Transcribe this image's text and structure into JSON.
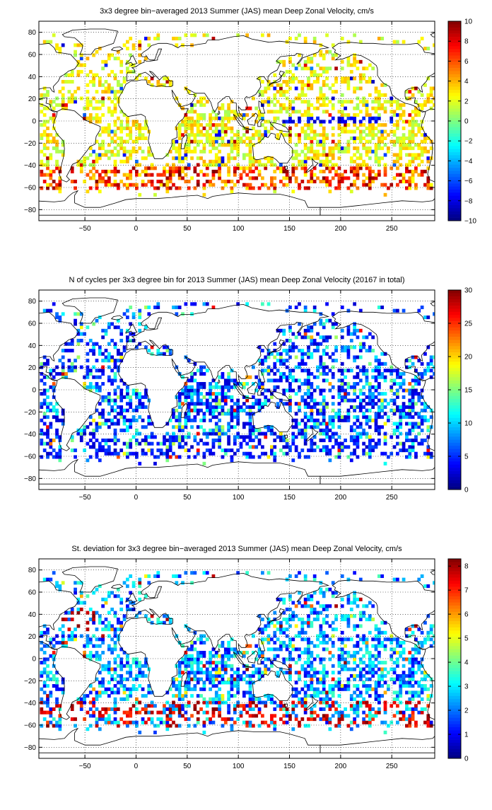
{
  "charts": [
    {
      "title": "3x3 degree bin−averaged 2013 Summer (JAS) mean Deep Zonal Velocity, cm/s",
      "colorbar_ticks": [
        "10",
        "8",
        "6",
        "4",
        "2",
        "0",
        "−2",
        "−4",
        "−6",
        "−8",
        "−10"
      ]
    },
    {
      "title": "N of cycles per 3x3 degree bin for 2013 Summer (JAS) mean Deep Zonal Velocity (20167 in total)",
      "colorbar_ticks": [
        "30",
        "25",
        "20",
        "15",
        "10",
        "5",
        "0"
      ]
    },
    {
      "title": "St. deviation for 3x3 degree bin−averaged 2013 Summer (JAS) mean Deep Zonal Velocity, cm/s",
      "colorbar_ticks": [
        "8",
        "7",
        "6",
        "5",
        "4",
        "3",
        "2",
        "1",
        "0"
      ]
    }
  ],
  "chart_data": [
    {
      "type": "heatmap",
      "title": "3x3 degree bin−averaged 2013 Summer (JAS) mean Deep Zonal Velocity, cm/s",
      "xlim": [
        -95,
        292
      ],
      "ylim": [
        -90,
        90
      ],
      "xticks": [
        -50,
        0,
        50,
        100,
        150,
        200,
        250
      ],
      "yticks": [
        80,
        60,
        40,
        20,
        0,
        -20,
        -40,
        -60,
        -80
      ],
      "grid": true,
      "bin_size_deg": 3,
      "colormap": "jet",
      "clim": [
        -10,
        10
      ],
      "colorbar_ticks": [
        10,
        8,
        6,
        4,
        2,
        0,
        -2,
        -4,
        -6,
        -8,
        -10
      ]
    },
    {
      "type": "heatmap",
      "title": "N of cycles per 3x3 degree bin for 2013 Summer (JAS) mean Deep Zonal Velocity (20167 in total)",
      "xlim": [
        -95,
        292
      ],
      "ylim": [
        -90,
        90
      ],
      "xticks": [
        -50,
        0,
        50,
        100,
        150,
        200,
        250
      ],
      "yticks": [
        80,
        60,
        40,
        20,
        0,
        -20,
        -40,
        -60,
        -80
      ],
      "grid": true,
      "bin_size_deg": 3,
      "colormap": "jet",
      "clim": [
        0,
        30
      ],
      "colorbar_ticks": [
        30,
        25,
        20,
        15,
        10,
        5,
        0
      ]
    },
    {
      "type": "heatmap",
      "title": "St. deviation for 3x3 degree bin−averaged 2013 Summer (JAS) mean Deep Zonal Velocity, cm/s",
      "xlim": [
        -95,
        292
      ],
      "ylim": [
        -90,
        90
      ],
      "xticks": [
        -50,
        0,
        50,
        100,
        150,
        200,
        250
      ],
      "yticks": [
        80,
        60,
        40,
        20,
        0,
        -20,
        -40,
        -60,
        -80
      ],
      "grid": true,
      "bin_size_deg": 3,
      "colormap": "jet",
      "clim": [
        0,
        8.3
      ],
      "colorbar_ticks": [
        8,
        7,
        6,
        5,
        4,
        3,
        2,
        1,
        0
      ]
    }
  ]
}
